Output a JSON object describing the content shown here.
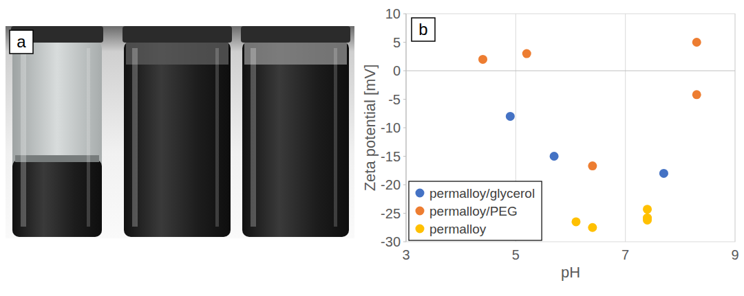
{
  "panel_labels": [
    "a",
    "b"
  ],
  "chart_data": {
    "type": "scatter",
    "x_label": "pH",
    "y_label": "Zeta potential [mV]",
    "xlim": [
      3,
      9
    ],
    "xticks": [
      3,
      5,
      7,
      9
    ],
    "ylim": [
      -30,
      10
    ],
    "yticks": [
      -30,
      -25,
      -20,
      -15,
      -10,
      -5,
      0,
      5,
      10
    ],
    "grid": true,
    "legend": "lower left",
    "marker": "circle",
    "series": [
      {
        "name": "permalloy/glycerol",
        "color": "#4472c4",
        "x": [
          4.9,
          5.7,
          7.7
        ],
        "values": [
          -8,
          -15,
          -18
        ]
      },
      {
        "name": "permalloy/PEG",
        "color": "#ed7d31",
        "x": [
          4.4,
          5.2,
          6.4,
          8.3,
          8.3
        ],
        "values": [
          2,
          3,
          -16.7,
          5,
          -4.2
        ]
      },
      {
        "name": "permalloy",
        "color": "#ffc000",
        "x": [
          6.1,
          6.4,
          7.4,
          7.4,
          7.4
        ],
        "values": [
          -26.5,
          -27.5,
          -24.3,
          -25.8,
          -26.2
        ]
      }
    ]
  }
}
